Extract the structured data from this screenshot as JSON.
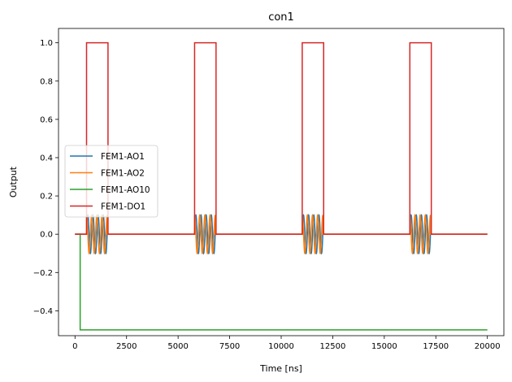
{
  "chart_data": {
    "type": "line",
    "title": "con1",
    "xlabel": "Time [ns]",
    "ylabel": "Output",
    "xlim": [
      -800,
      20800
    ],
    "ylim": [
      -0.53,
      1.075
    ],
    "xticks": [
      0,
      2500,
      5000,
      7500,
      10000,
      12500,
      15000,
      17500,
      20000
    ],
    "yticks": [
      -0.4,
      -0.2,
      0.0,
      0.2,
      0.4,
      0.6,
      0.8,
      1.0
    ],
    "xtick_labels": [
      "0",
      "2500",
      "5000",
      "7500",
      "10000",
      "12500",
      "15000",
      "17500",
      "20000"
    ],
    "ytick_labels": [
      "−0.4",
      "−0.2",
      "0.0",
      "0.2",
      "0.4",
      "0.6",
      "0.8",
      "1.0"
    ],
    "grid": false,
    "legend_position": "center-left",
    "series": [
      {
        "name": "FEM1-AO1",
        "color": "#1f77b4",
        "kind": "oscillation",
        "baseline": 0.0,
        "amplitude": 0.1,
        "cycles_per_burst": 4,
        "phase": "sin",
        "bursts": [
          [
            560,
            1560
          ],
          [
            5800,
            6800
          ],
          [
            11020,
            12020
          ],
          [
            16240,
            17240
          ]
        ],
        "x_end": 20000
      },
      {
        "name": "FEM1-AO2",
        "color": "#ff7f0e",
        "kind": "oscillation",
        "baseline": 0.0,
        "amplitude": 0.1,
        "cycles_per_burst": 4,
        "phase": "cos",
        "bursts": [
          [
            560,
            1560
          ],
          [
            5800,
            6800
          ],
          [
            11020,
            12020
          ],
          [
            16240,
            17240
          ]
        ],
        "x_end": 20000
      },
      {
        "name": "FEM1-AO10",
        "color": "#2ca02c",
        "kind": "step",
        "points": [
          [
            0,
            0.0
          ],
          [
            250,
            0.0
          ],
          [
            250,
            -0.5
          ],
          [
            20000,
            -0.5
          ]
        ]
      },
      {
        "name": "FEM1-DO1",
        "color": "#d62728",
        "kind": "step",
        "points": [
          [
            0,
            0.0
          ],
          [
            560,
            0.0
          ],
          [
            560,
            1.0
          ],
          [
            1600,
            1.0
          ],
          [
            1600,
            0.0
          ],
          [
            5800,
            0.0
          ],
          [
            5800,
            1.0
          ],
          [
            6840,
            1.0
          ],
          [
            6840,
            0.0
          ],
          [
            11020,
            0.0
          ],
          [
            11020,
            1.0
          ],
          [
            12060,
            1.0
          ],
          [
            12060,
            0.0
          ],
          [
            16240,
            0.0
          ],
          [
            16240,
            1.0
          ],
          [
            17280,
            1.0
          ],
          [
            17280,
            0.0
          ],
          [
            20000,
            0.0
          ]
        ]
      }
    ]
  }
}
